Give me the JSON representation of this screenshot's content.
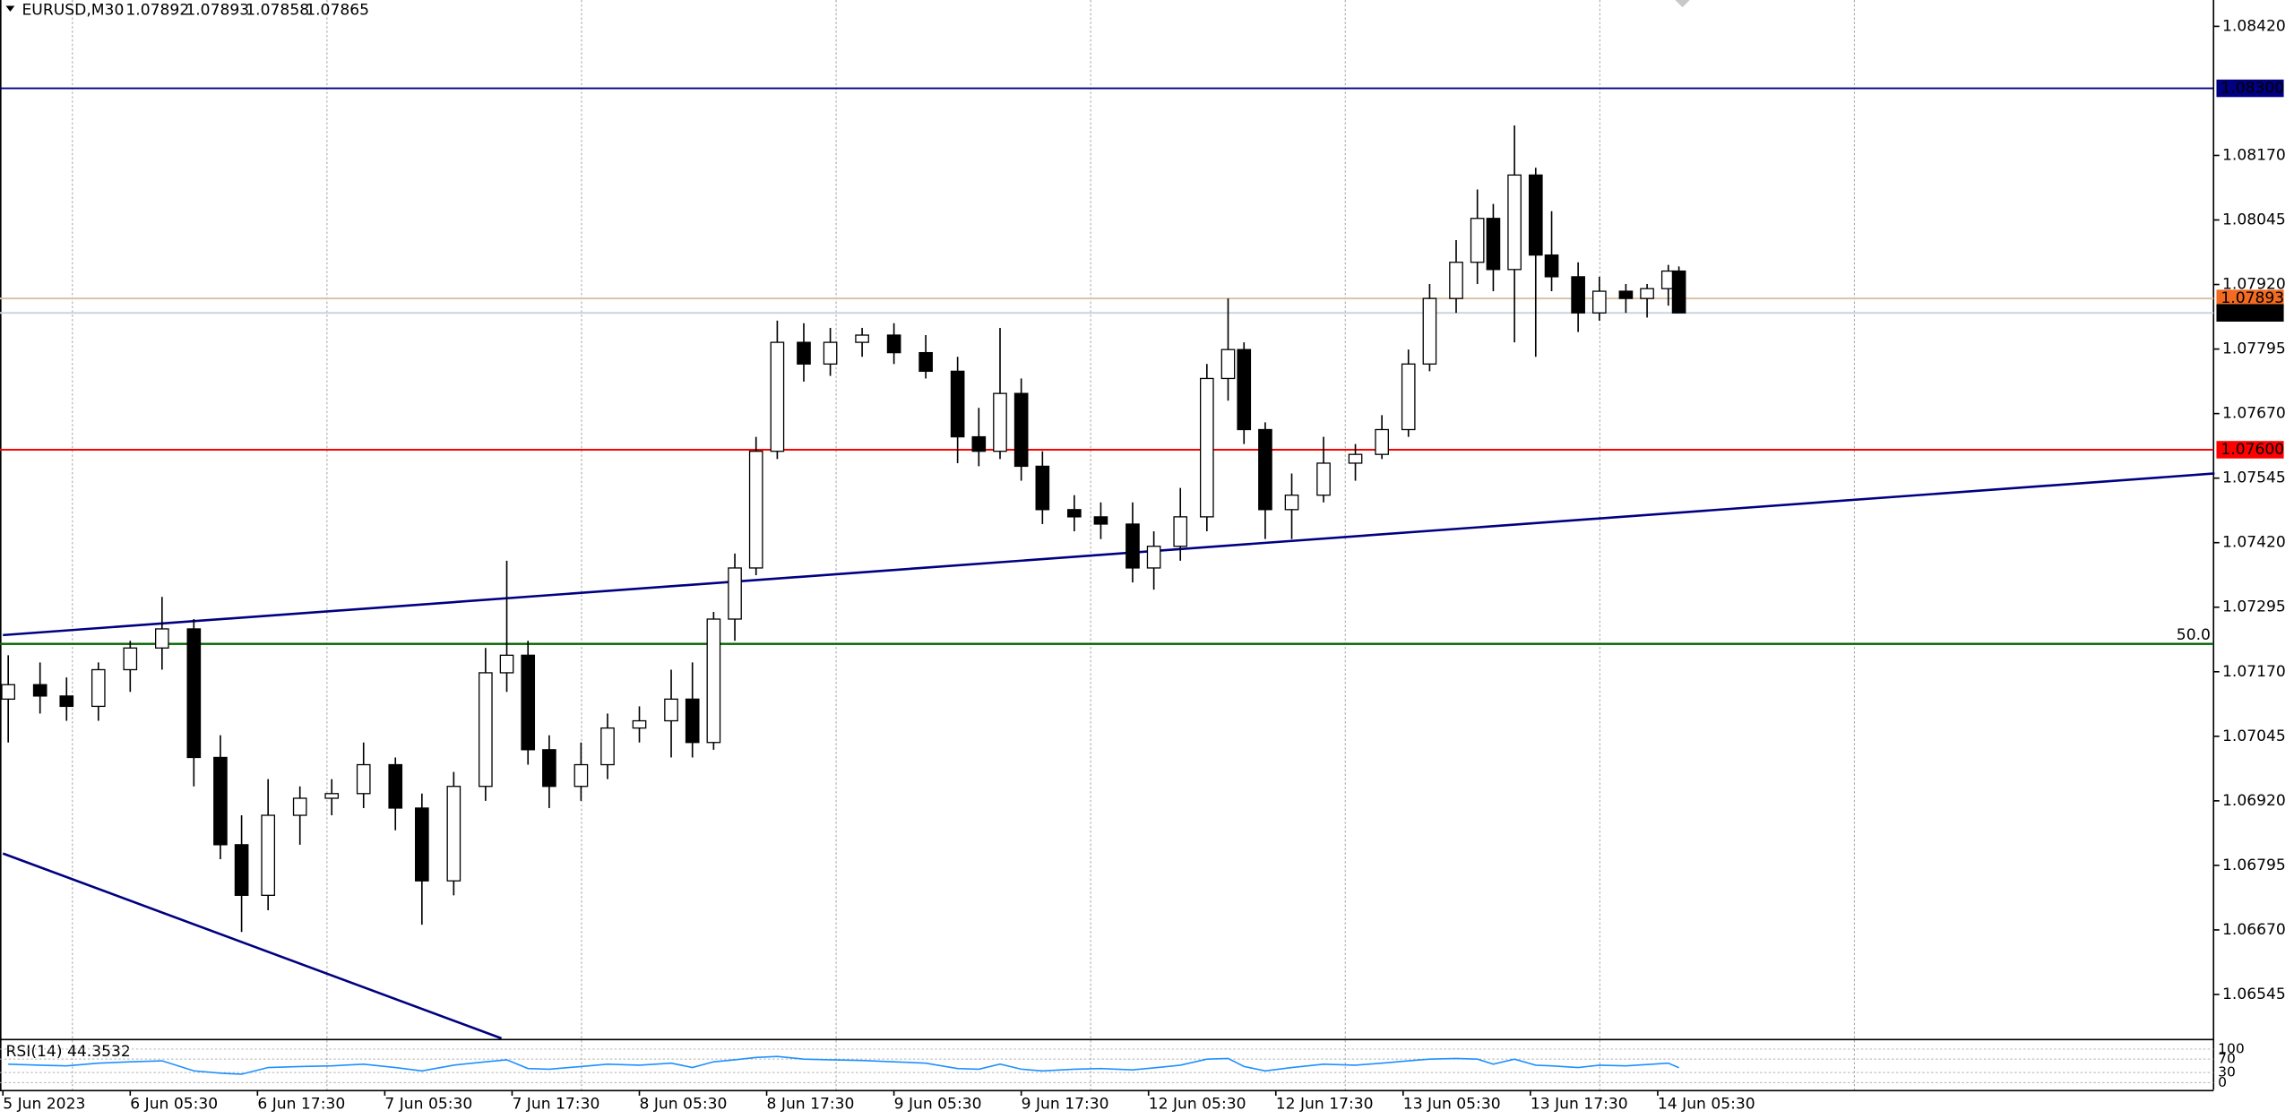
{
  "chart_data": [
    {
      "type": "candlestick",
      "title": "EURUSD,M30",
      "ohlc_header": [
        1.07892,
        1.07893,
        1.07858,
        1.07865
      ],
      "xlim": [
        -0.55,
        416.8
      ],
      "ylim": [
        1.06459,
        1.08471
      ],
      "xticks": [
        {
          "value": 0,
          "label": "5 Jun 2023"
        },
        {
          "value": 24,
          "label": "6 Jun 05:30"
        },
        {
          "value": 48,
          "label": "6 Jun 17:30"
        },
        {
          "value": 72,
          "label": "7 Jun 05:30"
        },
        {
          "value": 96,
          "label": "7 Jun 17:30"
        },
        {
          "value": 120,
          "label": "8 Jun 05:30"
        },
        {
          "value": 144,
          "label": "8 Jun 17:30"
        },
        {
          "value": 168,
          "label": "9 Jun 05:30"
        },
        {
          "value": 192,
          "label": "9 Jun 17:30"
        },
        {
          "value": 216,
          "label": "12 Jun 05:30"
        },
        {
          "value": 240,
          "label": "12 Jun 17:30"
        },
        {
          "value": 264,
          "label": "13 Jun 05:30"
        },
        {
          "value": 288,
          "label": "13 Jun 17:30"
        },
        {
          "value": 312,
          "label": "14 Jun 05:30"
        }
      ],
      "xgrid": [
        13,
        61,
        109,
        157,
        205,
        253,
        301,
        349
      ],
      "yticks": [
        {
          "value": 1.0842,
          "label": "1.08420"
        },
        {
          "value": 1.0817,
          "label": "1.08170"
        },
        {
          "value": 1.08045,
          "label": "1.08045"
        },
        {
          "value": 1.0792,
          "label": "1.07920"
        },
        {
          "value": 1.07795,
          "label": "1.07795"
        },
        {
          "value": 1.0767,
          "label": "1.07670"
        },
        {
          "value": 1.07545,
          "label": "1.07545"
        },
        {
          "value": 1.0742,
          "label": "1.07420"
        },
        {
          "value": 1.07295,
          "label": "1.07295"
        },
        {
          "value": 1.0717,
          "label": "1.07170"
        },
        {
          "value": 1.07045,
          "label": "1.07045"
        },
        {
          "value": 1.0692,
          "label": "1.06920"
        },
        {
          "value": 1.06795,
          "label": "1.06795"
        },
        {
          "value": 1.0667,
          "label": "1.06670"
        },
        {
          "value": 1.06545,
          "label": "1.06545"
        }
      ],
      "up_color": "#ffffff",
      "down_color": "#000000",
      "wick_color": "#000000",
      "x": [
        1,
        7,
        12,
        18,
        24,
        30,
        36,
        41,
        45,
        50,
        56,
        62,
        68,
        74,
        79,
        85,
        91,
        95,
        99,
        103,
        109,
        114,
        120,
        126,
        130,
        134,
        138,
        142,
        146,
        151,
        156,
        162,
        168,
        174,
        180,
        184,
        188,
        192,
        196,
        202,
        207,
        213,
        217,
        222,
        227,
        231,
        234,
        238,
        243,
        249,
        255,
        260,
        265,
        269,
        274,
        278,
        281,
        285,
        289,
        292,
        297,
        301,
        306,
        310,
        314,
        316
      ],
      "open": [
        1.07117,
        1.07145,
        1.07123,
        1.07103,
        1.07174,
        1.07216,
        1.07253,
        1.07004,
        1.06835,
        1.06737,
        1.06892,
        1.06925,
        1.06934,
        1.0699,
        1.06906,
        1.06765,
        1.06948,
        1.07168,
        1.07202,
        1.07019,
        1.06948,
        1.0699,
        1.07061,
        1.07075,
        1.07117,
        1.07033,
        1.07272,
        1.07371,
        1.07597,
        1.07808,
        1.07766,
        1.07808,
        1.07822,
        1.07788,
        1.07752,
        1.07625,
        1.07597,
        1.07709,
        1.07568,
        1.07484,
        1.0747,
        1.07456,
        1.07371,
        1.07413,
        1.0747,
        1.07738,
        1.07794,
        1.07639,
        1.07484,
        1.07512,
        1.07574,
        1.07591,
        1.07639,
        1.07766,
        1.07893,
        1.07963,
        1.08048,
        1.07949,
        1.08132,
        1.07977,
        1.07935,
        1.07865,
        1.07907,
        1.07893,
        1.07912,
        1.07946
      ],
      "high": [
        1.07202,
        1.07188,
        1.07159,
        1.07188,
        1.0723,
        1.07315,
        1.07272,
        1.07047,
        1.06892,
        1.06962,
        1.06948,
        1.06962,
        1.07033,
        1.07004,
        1.06934,
        1.06976,
        1.07216,
        1.07385,
        1.0723,
        1.07047,
        1.07033,
        1.07089,
        1.07103,
        1.07174,
        1.07188,
        1.07286,
        1.07399,
        1.07625,
        1.0785,
        1.07845,
        1.07836,
        1.07836,
        1.07845,
        1.07822,
        1.0778,
        1.07681,
        1.07836,
        1.07738,
        1.07597,
        1.07512,
        1.07498,
        1.07498,
        1.07442,
        1.07526,
        1.07766,
        1.07893,
        1.07808,
        1.07653,
        1.07554,
        1.07625,
        1.07611,
        1.07667,
        1.07794,
        1.07921,
        1.08006,
        1.08104,
        1.08076,
        1.08228,
        1.08146,
        1.08062,
        1.07963,
        1.07935,
        1.07921,
        1.07921,
        1.07958,
        1.07955
      ],
      "low": [
        1.07033,
        1.07089,
        1.07075,
        1.07075,
        1.07131,
        1.07174,
        1.06948,
        1.06807,
        1.06666,
        1.06708,
        1.06835,
        1.06892,
        1.06906,
        1.06863,
        1.0668,
        1.06737,
        1.0692,
        1.07131,
        1.0699,
        1.06906,
        1.0692,
        1.06962,
        1.07033,
        1.07004,
        1.07004,
        1.07019,
        1.0723,
        1.07357,
        1.07582,
        1.07732,
        1.07743,
        1.0778,
        1.07766,
        1.07738,
        1.07574,
        1.07568,
        1.07582,
        1.0754,
        1.07456,
        1.07442,
        1.07427,
        1.07343,
        1.07329,
        1.07385,
        1.07442,
        1.07695,
        1.07611,
        1.07427,
        1.07427,
        1.07498,
        1.0754,
        1.07582,
        1.07625,
        1.07752,
        1.07865,
        1.07921,
        1.07907,
        1.07808,
        1.0778,
        1.07907,
        1.07828,
        1.0785,
        1.07865,
        1.07856,
        1.07879,
        1.07865
      ],
      "close": [
        1.07145,
        1.07123,
        1.07103,
        1.07174,
        1.07216,
        1.07253,
        1.07004,
        1.06835,
        1.06737,
        1.06892,
        1.06925,
        1.06934,
        1.0699,
        1.06906,
        1.06765,
        1.06948,
        1.07168,
        1.07202,
        1.07019,
        1.06948,
        1.0699,
        1.07061,
        1.07075,
        1.07117,
        1.07033,
        1.07272,
        1.07371,
        1.07597,
        1.07808,
        1.07766,
        1.07808,
        1.07822,
        1.07788,
        1.07752,
        1.07625,
        1.07597,
        1.07709,
        1.07568,
        1.07484,
        1.0747,
        1.07456,
        1.07371,
        1.07413,
        1.0747,
        1.07738,
        1.07794,
        1.07639,
        1.07484,
        1.07512,
        1.07574,
        1.07591,
        1.07639,
        1.07766,
        1.07893,
        1.07963,
        1.08048,
        1.07949,
        1.08132,
        1.07977,
        1.07935,
        1.07865,
        1.07907,
        1.07893,
        1.07912,
        1.07946,
        1.07865
      ],
      "levels": [
        {
          "value": 1.083,
          "label": "1.08300",
          "color": "#000080",
          "line_color": "#000080"
        },
        {
          "value": 1.076,
          "label": "1.07600",
          "color": "#ff0000",
          "line_color": "#ff0000"
        },
        {
          "value": 1.07893,
          "label": "1.07893",
          "color": "#f26b21",
          "line_color": "#d9c3a8"
        },
        {
          "value": 1.07865,
          "label": "1.07865",
          "color": "#000000",
          "line_color": "#c8d4e0"
        }
      ],
      "fib_level": {
        "value": 1.07224,
        "label": "50.0",
        "color": "#006400"
      },
      "trendlines": [
        {
          "x": [
            0,
            417
          ],
          "y": [
            1.07241,
            1.07554
          ],
          "color": "#000080"
        },
        {
          "x": [
            0,
            94
          ],
          "y": [
            1.06818,
            1.0646
          ],
          "color": "#000080"
        }
      ]
    },
    {
      "type": "line",
      "title": "RSI(14) 44.3532",
      "color": "#1e90ff",
      "ylim": [
        0,
        100
      ],
      "yticks": [
        100,
        70,
        30,
        0
      ],
      "grid": true,
      "x": [
        1,
        7,
        12,
        18,
        24,
        30,
        36,
        41,
        45,
        50,
        56,
        62,
        68,
        74,
        79,
        85,
        91,
        95,
        99,
        103,
        109,
        114,
        120,
        126,
        130,
        134,
        138,
        142,
        146,
        151,
        156,
        162,
        168,
        174,
        180,
        184,
        188,
        192,
        196,
        202,
        207,
        213,
        217,
        222,
        227,
        231,
        234,
        238,
        243,
        249,
        255,
        260,
        265,
        269,
        274,
        278,
        281,
        285,
        289,
        292,
        297,
        301,
        306,
        310,
        314,
        316
      ],
      "values": [
        55,
        52,
        50,
        58,
        62,
        65,
        35,
        28,
        25,
        45,
        48,
        50,
        55,
        45,
        35,
        52,
        62,
        68,
        42,
        40,
        48,
        55,
        52,
        58,
        45,
        62,
        68,
        75,
        78,
        70,
        68,
        66,
        62,
        58,
        42,
        40,
        55,
        40,
        35,
        40,
        42,
        38,
        44,
        52,
        70,
        72,
        48,
        35,
        45,
        55,
        52,
        58,
        65,
        70,
        72,
        70,
        55,
        70,
        52,
        50,
        45,
        52,
        50,
        54,
        58,
        44.3532
      ]
    }
  ]
}
